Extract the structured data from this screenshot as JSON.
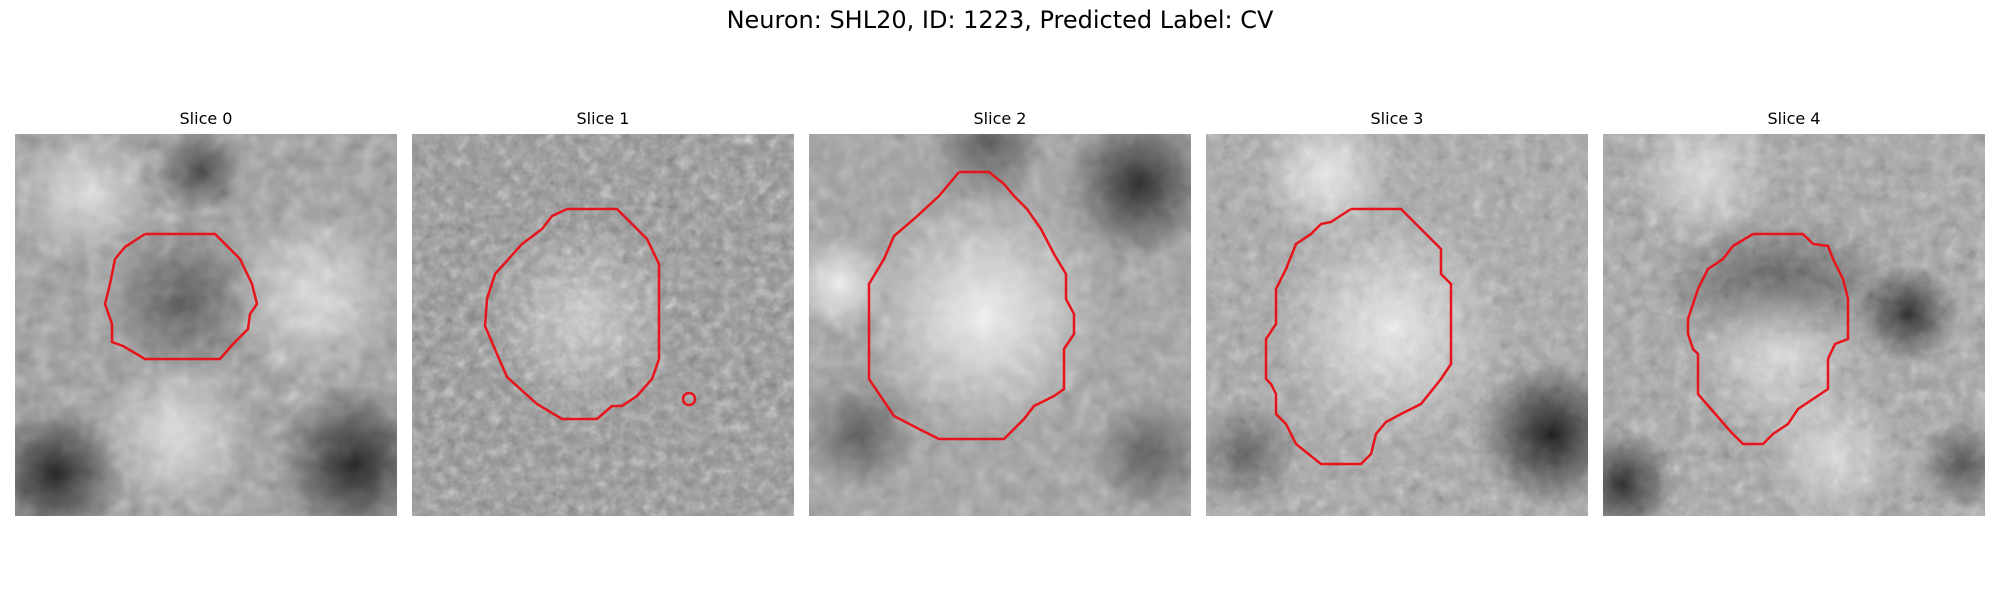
{
  "figure": {
    "suptitle": "Neuron: SHL20, ID: 1223, Predicted Label: CV"
  },
  "colors": {
    "contour": "#e8141b",
    "background": "#ffffff"
  },
  "panels": [
    {
      "title": "Slice 0"
    },
    {
      "title": "Slice 1"
    },
    {
      "title": "Slice 2"
    },
    {
      "title": "Slice 3"
    },
    {
      "title": "Slice 4"
    }
  ]
}
